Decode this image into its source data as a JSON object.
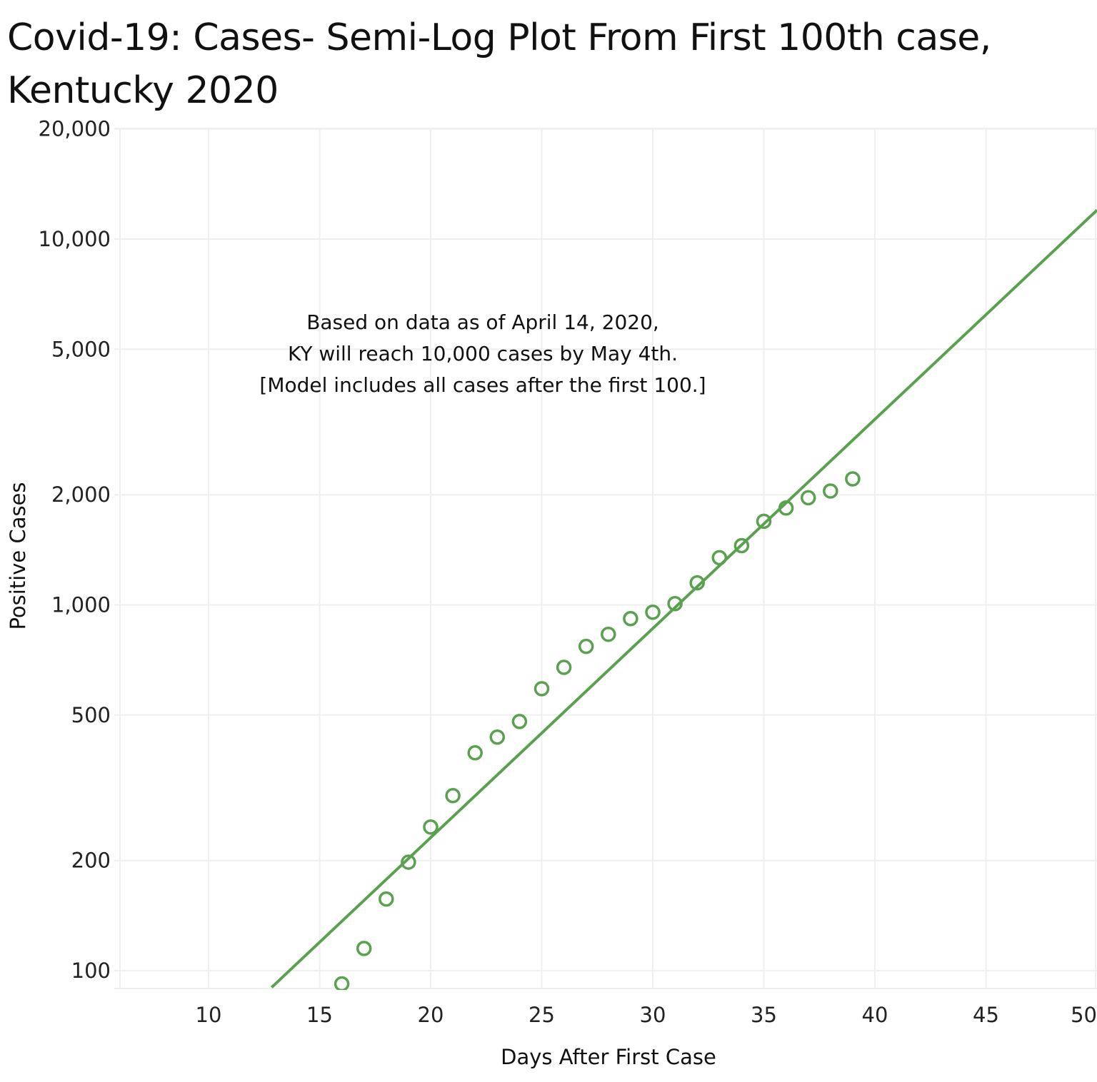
{
  "title_lines": [
    "Covid-19: Cases- Semi-Log Plot From First 100th case,",
    "Kentucky 2020"
  ],
  "colors": {
    "series": "#59a14f",
    "gridline": "#efefef",
    "text": "#111111"
  },
  "chart_data": {
    "type": "scatter",
    "title": "Covid-19: Cases- Semi-Log Plot From First 100th case, Kentucky 2020",
    "xlabel": "Days After First Case",
    "ylabel": "Positive Cases",
    "x_scale": "linear",
    "y_scale": "log",
    "xlim": [
      6,
      50
    ],
    "ylim": [
      90,
      20000
    ],
    "x_ticks": [
      10,
      15,
      20,
      25,
      30,
      35,
      40,
      45,
      50
    ],
    "x_tick_labels": [
      "10",
      "15",
      "20",
      "25",
      "30",
      "35",
      "40",
      "45",
      "50"
    ],
    "y_ticks": [
      100,
      200,
      500,
      1000,
      2000,
      5000,
      10000,
      20000
    ],
    "y_tick_labels": [
      "100",
      "200",
      "500",
      "1,000",
      "2,000",
      "5,000",
      "10,000",
      "20,000"
    ],
    "grid": true,
    "series": [
      {
        "kind": "points",
        "marker": "open-circle",
        "x": [
          16,
          17,
          18,
          19,
          20,
          21,
          22,
          23,
          24,
          25,
          26,
          27,
          28,
          29,
          30,
          31,
          32,
          33,
          34,
          35,
          36,
          37,
          38,
          39
        ],
        "y": [
          92,
          115,
          157,
          198,
          247,
          301,
          394,
          435,
          480,
          590,
          675,
          770,
          831,
          917,
          955,
          1008,
          1149,
          1346,
          1452,
          1693,
          1840,
          1963,
          2048,
          2210
        ]
      },
      {
        "kind": "trend-line",
        "x": [
          12.84,
          50
        ],
        "y": [
          90,
          12000
        ]
      }
    ],
    "annotation": [
      "Based on data as of April 14, 2020,",
      "KY will reach 10,000 cases by May 4th.",
      "[Model includes all cases after the first 100.]"
    ]
  }
}
